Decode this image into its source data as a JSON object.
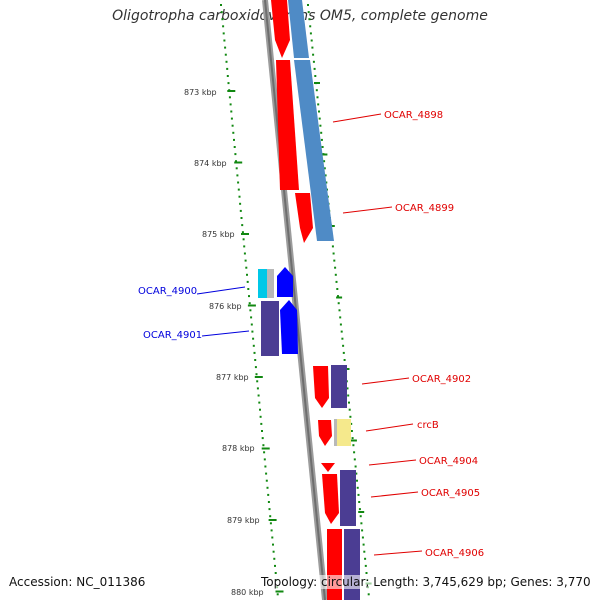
{
  "title": "Oligotropha carboxidovorans OM5, complete genome",
  "accession": "Accession: NC_011386",
  "summary": "Topology: circular; Length: 3,745,629 bp; Genes: 3,770",
  "kbp_labels": [
    "873 kbp",
    "874 kbp",
    "875 kbp",
    "876 kbp",
    "877 kbp",
    "878 kbp",
    "879 kbp",
    "880 kbp"
  ],
  "gene_labels": [
    {
      "text": "OCAR_4898",
      "color": "#e00000"
    },
    {
      "text": "OCAR_4899",
      "color": "#e00000"
    },
    {
      "text": "OCAR_4900",
      "color": "#0000dd"
    },
    {
      "text": "OCAR_4901",
      "color": "#0000dd"
    },
    {
      "text": "OCAR_4902",
      "color": "#e00000"
    },
    {
      "text": "crcB",
      "color": "#e00000"
    },
    {
      "text": "OCAR_4904",
      "color": "#e00000"
    },
    {
      "text": "OCAR_4905",
      "color": "#e00000"
    },
    {
      "text": "OCAR_4906",
      "color": "#e00000"
    }
  ],
  "colors": {
    "backbone": "#808080",
    "tick": "#118811",
    "red_gene": "#ff0000",
    "blue_gene": "#0000ff",
    "steelblue": "#4f8bc6",
    "purple": "#4b3d93",
    "cyan": "#00c8e8",
    "pale_yellow": "#f5e98c"
  }
}
